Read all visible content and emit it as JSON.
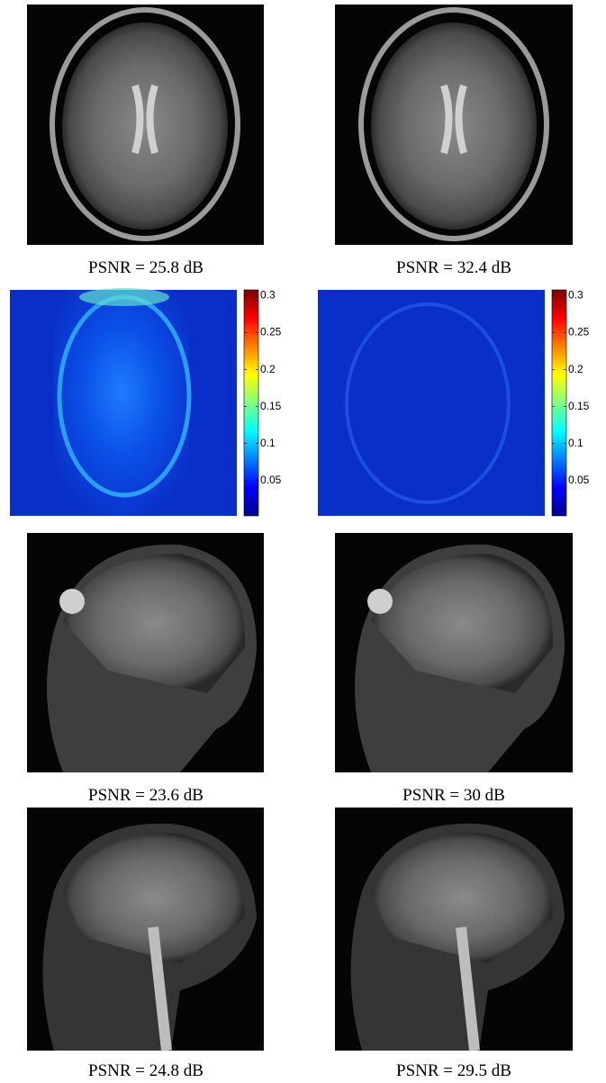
{
  "captions": [
    [
      "PSNR = 25.8 dB",
      "PSNR = 32.4 dB"
    ],
    [
      "PSNR = 23.6 dB",
      "PSNR = 30 dB"
    ],
    [
      "PSNR = 24.8 dB",
      "PSNR = 29.5 dB"
    ]
  ],
  "colorbars": [
    {
      "ticks": [
        0.05,
        0.1,
        0.15,
        0.2,
        0.25,
        0.3
      ],
      "limits": [
        0.002,
        0.308
      ]
    },
    {
      "ticks": [
        0.05,
        0.1,
        0.15,
        0.2,
        0.25,
        0.3
      ],
      "limits": [
        0.002,
        0.308
      ]
    }
  ]
}
